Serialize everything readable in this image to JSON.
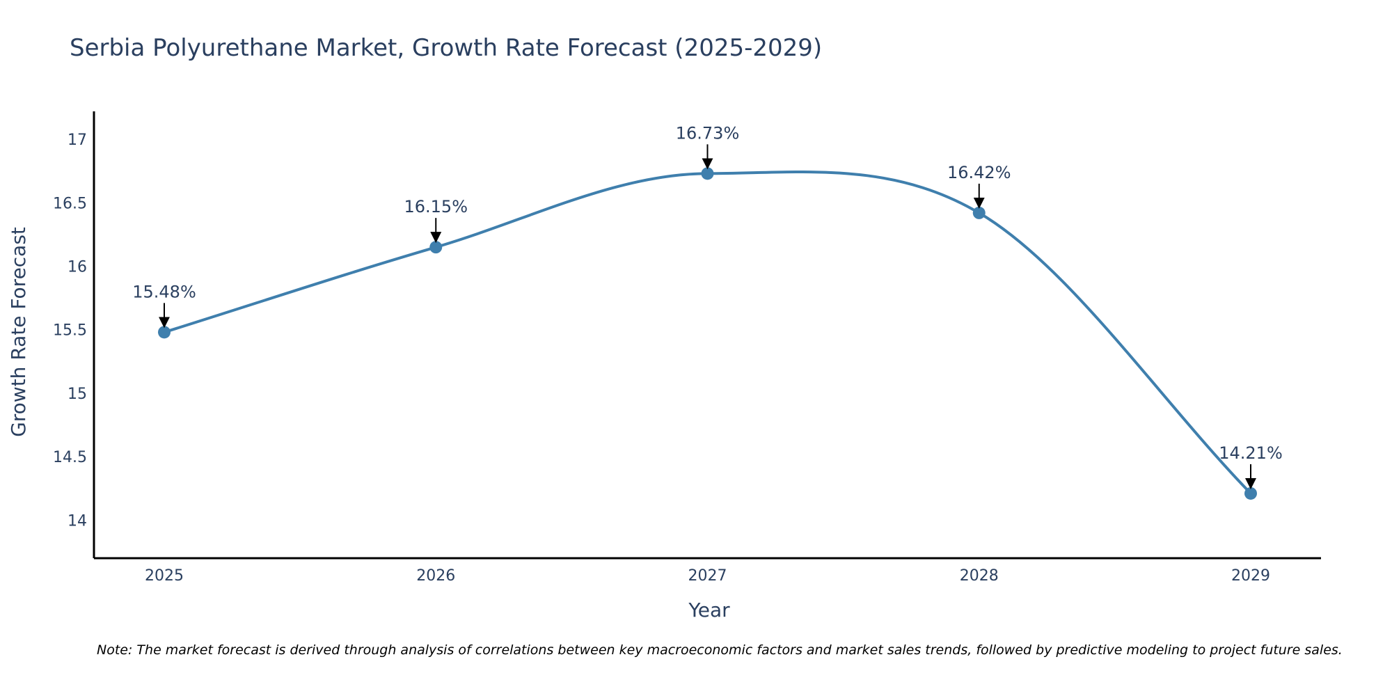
{
  "colors": {
    "line": "#3f7fad",
    "marker": "#3f7fad",
    "text": "#2a3f5f",
    "axis": "#000000",
    "arrow": "#000000",
    "background": "#ffffff"
  },
  "chart_data": {
    "type": "line",
    "title": "Serbia Polyurethane Market, Growth Rate Forecast (2025-2029)",
    "xlabel": "Year",
    "ylabel": "Growth Rate Forecast",
    "categories": [
      "2025",
      "2026",
      "2027",
      "2028",
      "2029"
    ],
    "series": [
      {
        "name": "Growth Rate Forecast",
        "values": [
          15.48,
          16.15,
          16.73,
          16.42,
          14.21
        ],
        "labels": [
          "15.48%",
          "16.15%",
          "16.73%",
          "16.42%",
          "14.21%"
        ]
      }
    ],
    "ylim": [
      13.7,
      17.22
    ],
    "yticks": [
      14,
      14.5,
      15,
      15.5,
      16,
      16.5,
      17
    ],
    "ytick_labels": [
      "14",
      "14.5",
      "15",
      "15.5",
      "16",
      "16.5",
      "17"
    ],
    "grid": false,
    "line_shape": "spline",
    "note": "Note: The market forecast is derived through analysis of correlations between key macroeconomic factors and market sales trends, followed by predictive modeling to project future sales."
  }
}
